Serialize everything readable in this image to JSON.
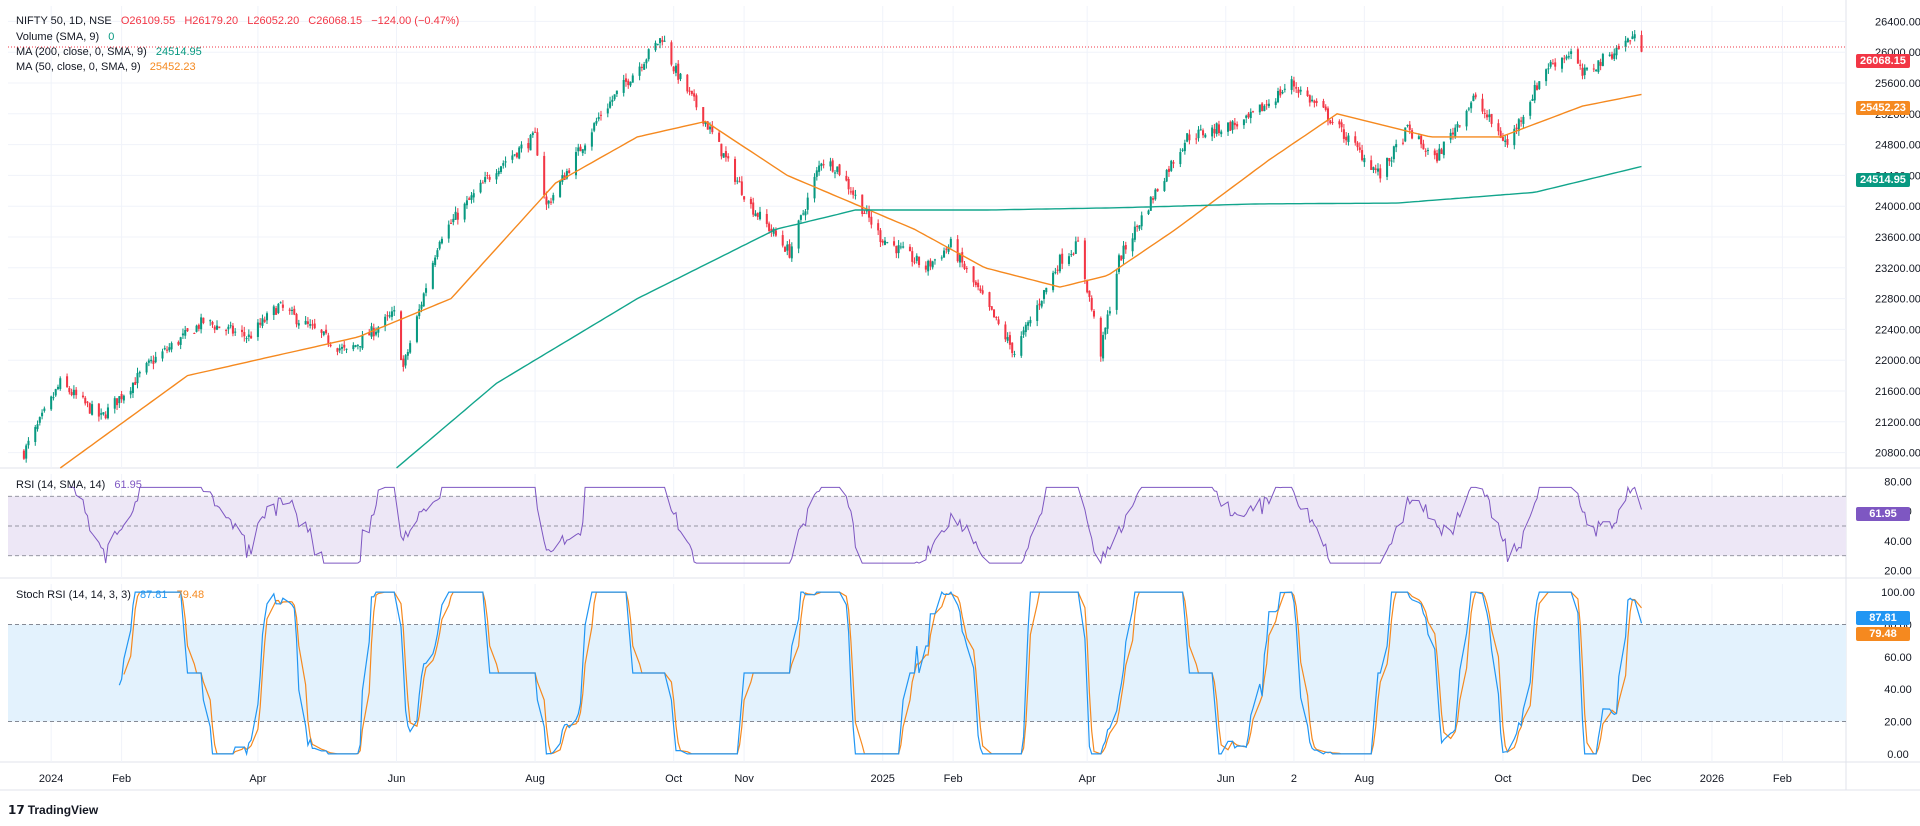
{
  "legend": {
    "symbol": "NIFTY 50, 1D, NSE",
    "o": "O26109.55",
    "h": "H26179.20",
    "l": "L26052.20",
    "c": "C26068.15",
    "change": "−124.00 (−0.47%)",
    "volume_label": "Volume (SMA, 9)",
    "volume_value": "0",
    "ma200_label": "MA (200, close, 0, SMA, 9)",
    "ma200_value": "24514.95",
    "ma50_label": "MA (50, close, 0, SMA, 9)",
    "ma50_value": "25452.23",
    "rsi_label": "RSI (14, SMA, 14)",
    "rsi_value": "61.95",
    "stoch_label": "Stoch RSI (14, 14, 3, 3)",
    "stoch_k": "87.81",
    "stoch_d": "79.48"
  },
  "price_tags": {
    "last": "26068.15",
    "ma50": "25452.23",
    "ma200": "24514.95",
    "rsi": "61.95",
    "stoch_k": "87.81",
    "stoch_d": "79.48"
  },
  "brand": "TradingView",
  "colors": {
    "up": "#089981",
    "down": "#f23645",
    "ma50": "#f5891f",
    "ma200": "#12a58c",
    "rsi": "#7e57c2",
    "stoch_k": "#2196f3",
    "stoch_d": "#f5891f",
    "rsi_band": "#ede7f6",
    "stoch_band": "#e3f2fd"
  },
  "chart_data": [
    {
      "type": "candlestick",
      "title": "NIFTY 50, 1D, NSE",
      "ylim": [
        20600,
        26600
      ],
      "y_ticks": [
        "26400.00",
        "26000.00",
        "25600.00",
        "25200.00",
        "24800.00",
        "24400.00",
        "24000.00",
        "23600.00",
        "23200.00",
        "22800.00",
        "22400.00",
        "22000.00",
        "21600.00",
        "21200.00",
        "20800.00"
      ],
      "x_ticks": [
        "2024",
        "Feb",
        "Apr",
        "Jun",
        "Aug",
        "Oct",
        "Nov",
        "2025",
        "Feb",
        "Apr",
        "Jun",
        "2",
        "Aug",
        "Oct",
        "Dec",
        "2026",
        "Feb"
      ],
      "series_keypoints": [
        {
          "name": "close",
          "points": [
            [
              "2023-12-20",
              20800
            ],
            [
              "2024-01-05",
              21700
            ],
            [
              "2024-01-23",
              21250
            ],
            [
              "2024-02-15",
              22000
            ],
            [
              "2024-03-08",
              22500
            ],
            [
              "2024-03-28",
              22300
            ],
            [
              "2024-04-10",
              22700
            ],
            [
              "2024-05-10",
              22100
            ],
            [
              "2024-05-31",
              22600
            ],
            [
              "2024-06-04",
              21900
            ],
            [
              "2024-06-20",
              23600
            ],
            [
              "2024-07-15",
              24500
            ],
            [
              "2024-08-01",
              24900
            ],
            [
              "2024-08-06",
              24000
            ],
            [
              "2024-08-30",
              25200
            ],
            [
              "2024-09-26",
              26200
            ],
            [
              "2024-10-01",
              25800
            ],
            [
              "2024-10-15",
              25100
            ],
            [
              "2024-11-04",
              24000
            ],
            [
              "2024-11-21",
              23400
            ],
            [
              "2024-12-05",
              24600
            ],
            [
              "2024-12-12",
              24500
            ],
            [
              "2024-12-31",
              23600
            ],
            [
              "2025-01-20",
              23200
            ],
            [
              "2025-01-31",
              23500
            ],
            [
              "2025-02-28",
              22100
            ],
            [
              "2025-03-20",
              23300
            ],
            [
              "2025-03-28",
              23500
            ],
            [
              "2025-04-07",
              22100
            ],
            [
              "2025-04-15",
              23300
            ],
            [
              "2025-05-05",
              24400
            ],
            [
              "2025-05-15",
              24900
            ],
            [
              "2025-06-10",
              25100
            ],
            [
              "2025-06-30",
              25600
            ],
            [
              "2025-07-15",
              25200
            ],
            [
              "2025-08-08",
              24400
            ],
            [
              "2025-08-20",
              25000
            ],
            [
              "2025-09-01",
              24600
            ],
            [
              "2025-09-18",
              25400
            ],
            [
              "2025-10-03",
              24800
            ],
            [
              "2025-10-20",
              25800
            ],
            [
              "2025-10-31",
              26000
            ],
            [
              "2025-11-05",
              25700
            ],
            [
              "2025-11-14",
              25900
            ],
            [
              "2025-11-27",
              26200
            ],
            [
              "2025-12-01",
              26068.15
            ]
          ]
        },
        {
          "name": "MA 50",
          "points": [
            [
              "2024-01-05",
              20600
            ],
            [
              "2024-03-01",
              21800
            ],
            [
              "2024-05-15",
              22300
            ],
            [
              "2024-06-25",
              22800
            ],
            [
              "2024-08-10",
              24300
            ],
            [
              "2024-09-15",
              24900
            ],
            [
              "2024-10-15",
              25100
            ],
            [
              "2024-11-20",
              24400
            ],
            [
              "2025-01-15",
              23700
            ],
            [
              "2025-02-15",
              23200
            ],
            [
              "2025-03-20",
              22950
            ],
            [
              "2025-04-10",
              23100
            ],
            [
              "2025-05-10",
              23700
            ],
            [
              "2025-06-20",
              24600
            ],
            [
              "2025-07-20",
              25200
            ],
            [
              "2025-08-30",
              24900
            ],
            [
              "2025-09-30",
              24900
            ],
            [
              "2025-11-05",
              25300
            ],
            [
              "2025-12-01",
              25452.23
            ]
          ]
        },
        {
          "name": "MA 200",
          "points": [
            [
              "2024-06-01",
              20600
            ],
            [
              "2024-07-15",
              21700
            ],
            [
              "2024-09-15",
              22800
            ],
            [
              "2024-11-15",
              23700
            ],
            [
              "2024-12-20",
              23950
            ],
            [
              "2025-02-15",
              23950
            ],
            [
              "2025-04-15",
              23980
            ],
            [
              "2025-06-15",
              24030
            ],
            [
              "2025-08-15",
              24040
            ],
            [
              "2025-10-15",
              24180
            ],
            [
              "2025-12-01",
              24514.95
            ]
          ]
        }
      ]
    },
    {
      "type": "line",
      "title": "RSI (14, SMA, 14)",
      "ylim": [
        15,
        85
      ],
      "y_ticks": [
        "80.00",
        "60.00",
        "40.00",
        "20.00"
      ],
      "band": [
        30,
        70
      ],
      "midline": 50,
      "series": [
        {
          "name": "RSI",
          "last": 61.95,
          "range": [
            25,
            75
          ]
        }
      ]
    },
    {
      "type": "line",
      "title": "Stoch RSI (14, 14, 3, 3)",
      "ylim": [
        -5,
        105
      ],
      "y_ticks": [
        "100.00",
        "80.00",
        "60.00",
        "40.00",
        "20.00",
        "0.00"
      ],
      "band": [
        20,
        80
      ],
      "series": [
        {
          "name": "K",
          "last": 87.81
        },
        {
          "name": "D",
          "last": 79.48
        }
      ]
    }
  ]
}
